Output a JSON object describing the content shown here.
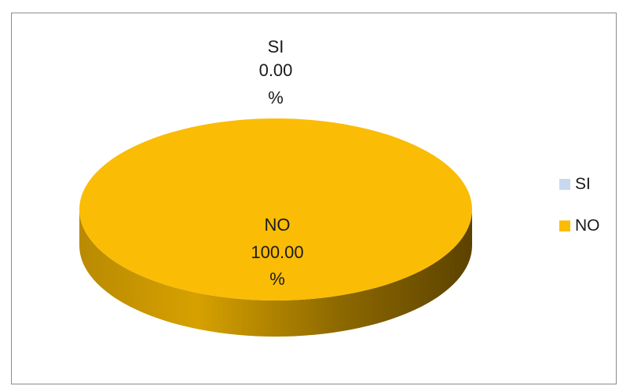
{
  "chart_data": {
    "type": "pie",
    "style": "3d",
    "categories": [
      "SI",
      "NO"
    ],
    "values": [
      0.0,
      100.0
    ],
    "value_labels": [
      "0.00",
      "100.00"
    ],
    "percent_sign": "%",
    "colors": [
      "#c6d9f1",
      "#fbbc05"
    ],
    "legend": {
      "position": "right",
      "items": [
        {
          "label": "SI",
          "color": "#c6d9f1"
        },
        {
          "label": "NO",
          "color": "#fbbc05"
        }
      ]
    }
  }
}
